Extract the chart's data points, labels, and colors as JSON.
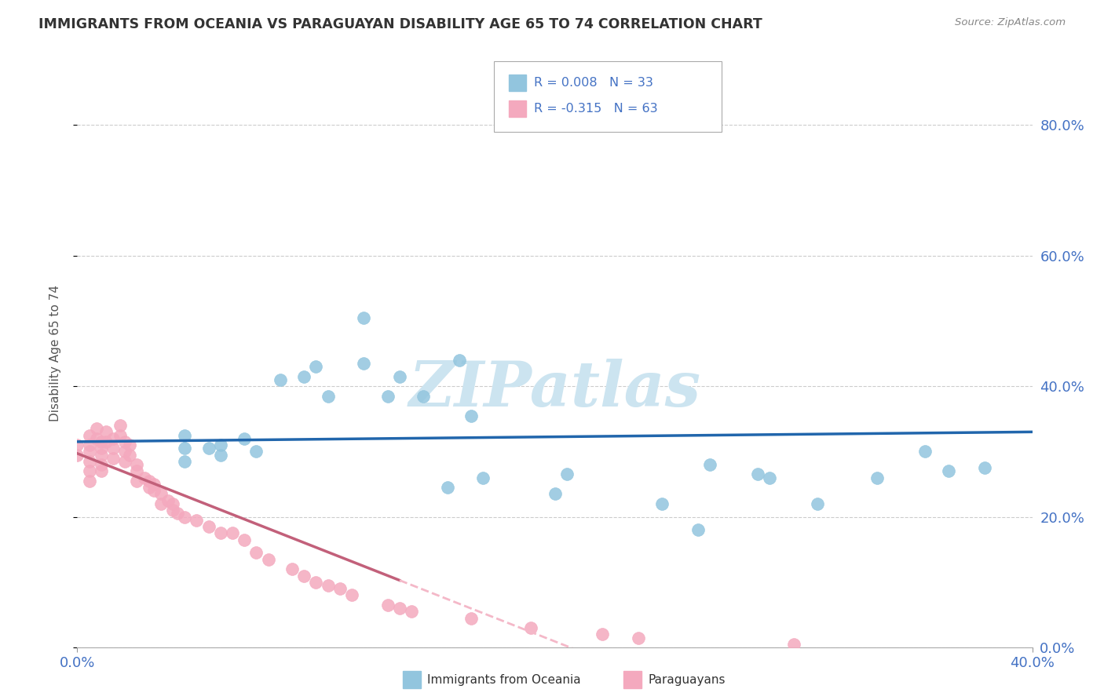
{
  "title": "IMMIGRANTS FROM OCEANIA VS PARAGUAYAN DISABILITY AGE 65 TO 74 CORRELATION CHART",
  "source": "Source: ZipAtlas.com",
  "ylabel": "Disability Age 65 to 74",
  "xlim": [
    0.0,
    0.4
  ],
  "ylim": [
    0.0,
    90.0
  ],
  "ytick_values": [
    0.0,
    20.0,
    40.0,
    60.0,
    80.0
  ],
  "xtick_labels": [
    "0.0%",
    "40.0%"
  ],
  "xtick_values": [
    0.0,
    0.4
  ],
  "legend_blue_r": "R = 0.008",
  "legend_blue_n": "N = 33",
  "legend_pink_r": "R = -0.315",
  "legend_pink_n": "N = 63",
  "blue_color": "#92c5de",
  "pink_color": "#f4a9be",
  "trendline_blue_color": "#2166ac",
  "trendline_pink_color": "#c2607a",
  "trendline_pink_dashed_color": "#f4b8c8",
  "watermark": "ZIPatlas",
  "watermark_color": "#cce4f0",
  "blue_scatter_x": [
    0.045,
    0.055,
    0.045,
    0.045,
    0.06,
    0.06,
    0.07,
    0.075,
    0.085,
    0.095,
    0.1,
    0.105,
    0.12,
    0.12,
    0.13,
    0.135,
    0.145,
    0.16,
    0.165,
    0.155,
    0.17,
    0.2,
    0.205,
    0.245,
    0.26,
    0.265,
    0.285,
    0.31,
    0.29,
    0.335,
    0.355,
    0.365,
    0.38
  ],
  "blue_scatter_y": [
    30.5,
    30.5,
    32.5,
    28.5,
    29.5,
    31.0,
    32.0,
    30.0,
    41.0,
    41.5,
    43.0,
    38.5,
    50.5,
    43.5,
    38.5,
    41.5,
    38.5,
    44.0,
    35.5,
    24.5,
    26.0,
    23.5,
    26.5,
    22.0,
    18.0,
    28.0,
    26.5,
    22.0,
    26.0,
    26.0,
    30.0,
    27.0,
    27.5
  ],
  "pink_scatter_x": [
    0.0,
    0.0,
    0.005,
    0.005,
    0.005,
    0.005,
    0.005,
    0.005,
    0.008,
    0.008,
    0.01,
    0.01,
    0.01,
    0.01,
    0.01,
    0.012,
    0.012,
    0.015,
    0.015,
    0.015,
    0.018,
    0.018,
    0.02,
    0.02,
    0.02,
    0.022,
    0.022,
    0.025,
    0.025,
    0.025,
    0.028,
    0.03,
    0.03,
    0.032,
    0.032,
    0.035,
    0.035,
    0.038,
    0.04,
    0.04,
    0.042,
    0.045,
    0.05,
    0.055,
    0.06,
    0.065,
    0.07,
    0.075,
    0.08,
    0.09,
    0.095,
    0.1,
    0.105,
    0.11,
    0.115,
    0.13,
    0.135,
    0.14,
    0.165,
    0.19,
    0.22,
    0.235,
    0.3
  ],
  "pink_scatter_y": [
    31.0,
    29.5,
    32.5,
    31.0,
    30.0,
    28.5,
    27.0,
    25.5,
    33.5,
    32.0,
    31.5,
    30.5,
    29.5,
    28.0,
    27.0,
    33.0,
    31.5,
    32.0,
    30.5,
    29.0,
    34.0,
    32.5,
    31.5,
    30.0,
    28.5,
    31.0,
    29.5,
    28.0,
    27.0,
    25.5,
    26.0,
    25.5,
    24.5,
    25.0,
    24.0,
    23.5,
    22.0,
    22.5,
    22.0,
    21.0,
    20.5,
    20.0,
    19.5,
    18.5,
    17.5,
    17.5,
    16.5,
    14.5,
    13.5,
    12.0,
    11.0,
    10.0,
    9.5,
    9.0,
    8.0,
    6.5,
    6.0,
    5.5,
    4.5,
    3.0,
    2.0,
    1.5,
    0.5
  ],
  "blue_trendline_y_at_0": 31.5,
  "blue_trendline_y_at_40": 33.0,
  "pink_trendline_y_at_0": 31.5,
  "pink_trendline_slope": -1.1
}
